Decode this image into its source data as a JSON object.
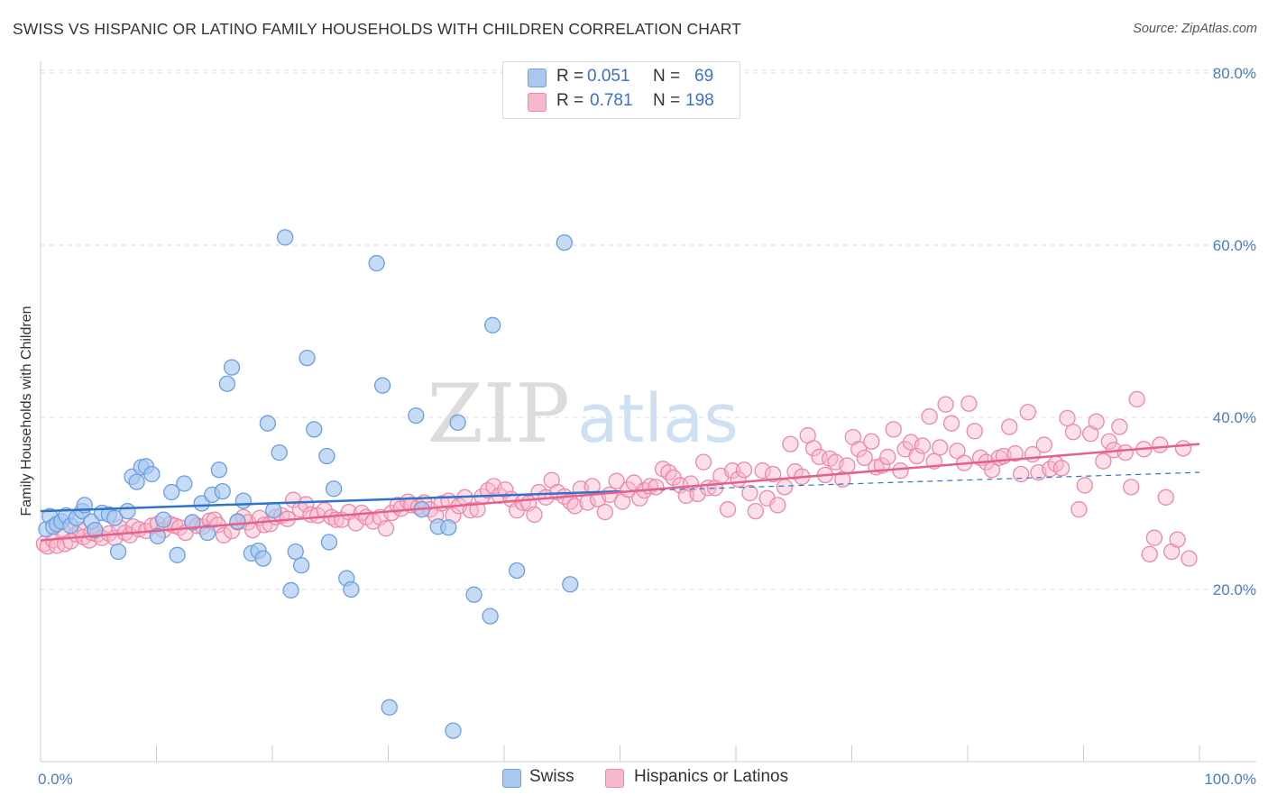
{
  "header": {
    "title": "SWISS VS HISPANIC OR LATINO FAMILY HOUSEHOLDS WITH CHILDREN CORRELATION CHART",
    "source": "Source: ZipAtlas.com"
  },
  "watermark": {
    "zip": "ZIP",
    "atlas": "atlas"
  },
  "legend_top": [
    {
      "r_label": "R =",
      "r_value": "0.051",
      "n_label": "N =",
      "n_value": "69"
    },
    {
      "r_label": "R =",
      "r_value": "0.781",
      "n_label": "N =",
      "n_value": "198"
    }
  ],
  "legend_bottom": [
    {
      "label": "Swiss"
    },
    {
      "label": "Hispanics or Latinos"
    }
  ],
  "colors": {
    "swiss_fill": "#a8c8f0",
    "swiss_stroke": "#6d9ee0",
    "swiss_line": "#3072c8",
    "hisp_fill": "#f8b8cc",
    "hisp_stroke": "#ee88a8",
    "hisp_line": "#e5608c",
    "grid": "#dddddd",
    "axis_text": "#4a7cc9"
  },
  "chart_data": {
    "type": "scatter",
    "title": "SWISS VS HISPANIC OR LATINO FAMILY HOUSEHOLDS WITH CHILDREN CORRELATION CHART",
    "xlabel": "",
    "ylabel": "Family Households with Children",
    "xlim": [
      0,
      100
    ],
    "ylim": [
      0,
      82
    ],
    "x_tick_labels": [
      "0.0%",
      "100.0%"
    ],
    "y_ticks": [
      20,
      40,
      60,
      80
    ],
    "y_tick_labels": [
      "20.0%",
      "40.0%",
      "60.0%",
      "80.0%"
    ],
    "series": [
      {
        "name": "Swiss",
        "r": 0.051,
        "n": 69,
        "trend": {
          "x": [
            0,
            50
          ],
          "y": [
            29.1,
            31.4
          ],
          "dashed_to": [
            100,
            33.6
          ]
        },
        "points": [
          [
            0.5,
            27.0
          ],
          [
            0.8,
            28.5
          ],
          [
            1.1,
            27.3
          ],
          [
            1.4,
            27.6
          ],
          [
            1.8,
            27.9
          ],
          [
            2.2,
            28.6
          ],
          [
            2.6,
            27.4
          ],
          [
            3.1,
            28.3
          ],
          [
            3.6,
            29.1
          ],
          [
            3.8,
            29.8
          ],
          [
            4.4,
            27.9
          ],
          [
            4.7,
            26.9
          ],
          [
            5.3,
            28.9
          ],
          [
            5.9,
            28.7
          ],
          [
            6.4,
            28.3
          ],
          [
            6.7,
            24.4
          ],
          [
            7.5,
            29.1
          ],
          [
            7.9,
            33.1
          ],
          [
            8.3,
            32.5
          ],
          [
            8.7,
            34.2
          ],
          [
            9.1,
            34.3
          ],
          [
            9.6,
            33.4
          ],
          [
            10.1,
            26.2
          ],
          [
            10.6,
            28.1
          ],
          [
            11.3,
            31.3
          ],
          [
            11.8,
            24.0
          ],
          [
            12.4,
            32.3
          ],
          [
            13.1,
            27.8
          ],
          [
            13.9,
            30.0
          ],
          [
            14.4,
            26.6
          ],
          [
            14.8,
            31.0
          ],
          [
            15.4,
            33.9
          ],
          [
            15.7,
            31.4
          ],
          [
            16.1,
            43.9
          ],
          [
            16.5,
            45.8
          ],
          [
            17.0,
            27.9
          ],
          [
            17.5,
            30.3
          ],
          [
            18.2,
            24.2
          ],
          [
            18.8,
            24.5
          ],
          [
            19.2,
            23.6
          ],
          [
            19.6,
            39.3
          ],
          [
            20.1,
            29.2
          ],
          [
            20.6,
            35.9
          ],
          [
            21.1,
            60.9
          ],
          [
            21.6,
            19.9
          ],
          [
            22.0,
            24.4
          ],
          [
            22.5,
            22.8
          ],
          [
            23.0,
            46.9
          ],
          [
            23.6,
            38.6
          ],
          [
            24.7,
            35.5
          ],
          [
            24.9,
            25.5
          ],
          [
            25.3,
            31.7
          ],
          [
            26.4,
            21.3
          ],
          [
            26.8,
            20.0
          ],
          [
            29.0,
            57.9
          ],
          [
            29.5,
            43.7
          ],
          [
            30.1,
            6.3
          ],
          [
            32.4,
            40.2
          ],
          [
            32.9,
            29.3
          ],
          [
            34.3,
            27.3
          ],
          [
            35.2,
            27.2
          ],
          [
            35.6,
            3.6
          ],
          [
            36.0,
            39.4
          ],
          [
            37.4,
            19.4
          ],
          [
            38.8,
            16.9
          ],
          [
            39.0,
            50.7
          ],
          [
            41.1,
            22.2
          ],
          [
            45.2,
            60.3
          ],
          [
            45.7,
            20.6
          ]
        ]
      },
      {
        "name": "Hispanics or Latinos",
        "r": 0.781,
        "n": 198,
        "trend": {
          "x": [
            0,
            100
          ],
          "y": [
            25.7,
            36.9
          ]
        },
        "points": [
          [
            0.3,
            25.3
          ],
          [
            0.6,
            25.0
          ],
          [
            1.1,
            25.7
          ],
          [
            1.4,
            25.1
          ],
          [
            1.9,
            26.8
          ],
          [
            2.1,
            25.3
          ],
          [
            2.6,
            25.6
          ],
          [
            3.1,
            26.4
          ],
          [
            3.4,
            26.9
          ],
          [
            3.7,
            26.1
          ],
          [
            4.2,
            25.7
          ],
          [
            4.4,
            26.6
          ],
          [
            4.9,
            26.4
          ],
          [
            5.3,
            26.0
          ],
          [
            5.9,
            26.5
          ],
          [
            6.4,
            26.0
          ],
          [
            6.8,
            27.2
          ],
          [
            7.3,
            26.6
          ],
          [
            7.7,
            26.3
          ],
          [
            8.0,
            27.3
          ],
          [
            8.5,
            27.0
          ],
          [
            9.1,
            26.8
          ],
          [
            9.6,
            27.4
          ],
          [
            10.1,
            27.6
          ],
          [
            10.6,
            26.9
          ],
          [
            11.2,
            27.6
          ],
          [
            11.6,
            27.4
          ],
          [
            12.0,
            27.2
          ],
          [
            12.5,
            26.6
          ],
          [
            13.1,
            27.8
          ],
          [
            13.5,
            27.4
          ],
          [
            14.0,
            27.3
          ],
          [
            14.6,
            28.0
          ],
          [
            15.0,
            28.1
          ],
          [
            15.3,
            27.5
          ],
          [
            15.8,
            26.3
          ],
          [
            16.5,
            26.8
          ],
          [
            17.0,
            27.8
          ],
          [
            17.5,
            28.4
          ],
          [
            17.9,
            27.8
          ],
          [
            18.3,
            26.9
          ],
          [
            18.9,
            28.3
          ],
          [
            19.3,
            27.5
          ],
          [
            19.8,
            27.6
          ],
          [
            20.3,
            28.4
          ],
          [
            20.8,
            28.6
          ],
          [
            21.3,
            28.2
          ],
          [
            21.8,
            30.4
          ],
          [
            22.4,
            29.3
          ],
          [
            22.9,
            29.9
          ],
          [
            23.3,
            28.7
          ],
          [
            23.9,
            28.6
          ],
          [
            24.5,
            29.2
          ],
          [
            25.1,
            28.4
          ],
          [
            25.5,
            28.1
          ],
          [
            26.0,
            28.1
          ],
          [
            26.6,
            29.0
          ],
          [
            27.2,
            27.7
          ],
          [
            27.7,
            28.9
          ],
          [
            28.1,
            28.4
          ],
          [
            28.7,
            27.9
          ],
          [
            29.3,
            28.4
          ],
          [
            29.8,
            27.1
          ],
          [
            30.3,
            28.9
          ],
          [
            30.8,
            29.8
          ],
          [
            31.1,
            29.4
          ],
          [
            31.7,
            30.2
          ],
          [
            32.0,
            29.8
          ],
          [
            32.6,
            29.6
          ],
          [
            33.1,
            30.1
          ],
          [
            33.6,
            29.3
          ],
          [
            34.1,
            28.6
          ],
          [
            34.6,
            30.0
          ],
          [
            35.2,
            30.3
          ],
          [
            35.6,
            28.6
          ],
          [
            36.1,
            29.7
          ],
          [
            36.6,
            30.7
          ],
          [
            37.1,
            29.2
          ],
          [
            37.7,
            29.3
          ],
          [
            38.1,
            30.8
          ],
          [
            38.6,
            31.5
          ],
          [
            39.1,
            32.0
          ],
          [
            39.6,
            30.9
          ],
          [
            40.1,
            31.6
          ],
          [
            40.6,
            30.5
          ],
          [
            41.1,
            29.2
          ],
          [
            41.6,
            30.1
          ],
          [
            42.1,
            30.0
          ],
          [
            42.6,
            28.7
          ],
          [
            43.0,
            31.3
          ],
          [
            43.6,
            30.7
          ],
          [
            44.1,
            32.7
          ],
          [
            44.6,
            31.3
          ],
          [
            45.2,
            30.8
          ],
          [
            45.7,
            30.2
          ],
          [
            46.1,
            29.7
          ],
          [
            46.6,
            31.7
          ],
          [
            47.2,
            30.1
          ],
          [
            47.6,
            32.0
          ],
          [
            48.1,
            30.5
          ],
          [
            48.7,
            29.0
          ],
          [
            49.1,
            31.0
          ],
          [
            49.7,
            32.6
          ],
          [
            50.2,
            30.2
          ],
          [
            50.7,
            31.6
          ],
          [
            51.2,
            32.4
          ],
          [
            51.7,
            30.6
          ],
          [
            52.1,
            31.5
          ],
          [
            52.6,
            32.0
          ],
          [
            53.1,
            31.9
          ],
          [
            53.7,
            34.0
          ],
          [
            54.2,
            33.6
          ],
          [
            54.6,
            33.0
          ],
          [
            55.2,
            32.1
          ],
          [
            55.7,
            30.9
          ],
          [
            56.1,
            32.3
          ],
          [
            56.7,
            31.1
          ],
          [
            57.2,
            34.8
          ],
          [
            57.6,
            31.8
          ],
          [
            58.2,
            31.8
          ],
          [
            58.7,
            33.2
          ],
          [
            59.3,
            29.3
          ],
          [
            59.7,
            33.8
          ],
          [
            60.2,
            32.8
          ],
          [
            60.7,
            33.9
          ],
          [
            61.2,
            31.2
          ],
          [
            61.7,
            29.1
          ],
          [
            62.3,
            33.8
          ],
          [
            62.7,
            30.6
          ],
          [
            63.2,
            33.4
          ],
          [
            63.6,
            29.8
          ],
          [
            64.2,
            31.9
          ],
          [
            64.7,
            36.9
          ],
          [
            65.1,
            33.7
          ],
          [
            65.7,
            33.1
          ],
          [
            66.2,
            37.9
          ],
          [
            66.7,
            36.4
          ],
          [
            67.2,
            35.4
          ],
          [
            67.7,
            33.3
          ],
          [
            68.1,
            35.2
          ],
          [
            68.6,
            34.8
          ],
          [
            69.2,
            32.8
          ],
          [
            69.6,
            34.4
          ],
          [
            70.1,
            37.7
          ],
          [
            70.6,
            36.3
          ],
          [
            71.1,
            35.3
          ],
          [
            71.7,
            37.2
          ],
          [
            72.1,
            34.2
          ],
          [
            72.6,
            34.4
          ],
          [
            73.1,
            35.4
          ],
          [
            73.6,
            38.6
          ],
          [
            74.2,
            33.8
          ],
          [
            74.6,
            36.3
          ],
          [
            75.1,
            37.1
          ],
          [
            75.6,
            35.5
          ],
          [
            76.1,
            36.7
          ],
          [
            76.7,
            40.1
          ],
          [
            77.1,
            34.9
          ],
          [
            77.6,
            36.5
          ],
          [
            78.1,
            41.5
          ],
          [
            78.6,
            39.3
          ],
          [
            79.1,
            36.1
          ],
          [
            79.7,
            34.7
          ],
          [
            80.1,
            41.6
          ],
          [
            80.6,
            38.4
          ],
          [
            81.1,
            35.3
          ],
          [
            81.6,
            34.8
          ],
          [
            82.1,
            33.9
          ],
          [
            82.7,
            35.3
          ],
          [
            83.1,
            35.5
          ],
          [
            83.6,
            38.9
          ],
          [
            84.1,
            35.8
          ],
          [
            84.6,
            33.4
          ],
          [
            85.2,
            40.6
          ],
          [
            85.6,
            35.7
          ],
          [
            86.1,
            33.6
          ],
          [
            86.6,
            36.8
          ],
          [
            87.1,
            34.0
          ],
          [
            87.6,
            34.6
          ],
          [
            88.1,
            34.1
          ],
          [
            88.6,
            39.9
          ],
          [
            89.1,
            38.3
          ],
          [
            89.6,
            29.3
          ],
          [
            90.1,
            32.1
          ],
          [
            90.6,
            38.1
          ],
          [
            91.1,
            39.5
          ],
          [
            91.7,
            34.9
          ],
          [
            92.2,
            37.2
          ],
          [
            92.6,
            36.2
          ],
          [
            93.1,
            38.9
          ],
          [
            93.6,
            35.9
          ],
          [
            94.1,
            31.9
          ],
          [
            94.6,
            42.1
          ],
          [
            95.2,
            36.3
          ],
          [
            95.7,
            24.1
          ],
          [
            96.1,
            26.0
          ],
          [
            96.6,
            36.8
          ],
          [
            97.1,
            30.7
          ],
          [
            97.6,
            24.4
          ],
          [
            98.1,
            25.8
          ],
          [
            98.6,
            36.4
          ],
          [
            99.1,
            23.6
          ]
        ]
      }
    ]
  }
}
